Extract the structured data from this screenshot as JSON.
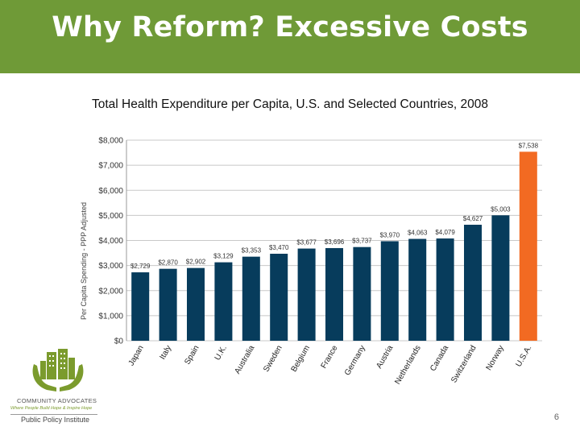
{
  "slide": {
    "title": "Why Reform? Excessive Costs",
    "subtitle": "Total Health Expenditure per Capita, U.S. and Selected Countries, 2008",
    "page_number": "6"
  },
  "logo": {
    "name": "COMMUNITY ADVOCATES",
    "tagline": "Where People Build Hope & Inspire Hope",
    "sub": "Public Policy Institute"
  },
  "colors": {
    "banner": "#6f9a37",
    "bar": "#073c5c",
    "bar_highlight": "#f26a22",
    "grid": "#c8c8c8"
  },
  "chart_data": {
    "type": "bar",
    "title": "Total Health Expenditure per Capita, U.S. and Selected Countries, 2008",
    "xlabel": "",
    "ylabel": "Per Capita Spending - PPP Adjusted",
    "ylim": [
      0,
      8000
    ],
    "yticks": [
      0,
      1000,
      2000,
      3000,
      4000,
      5000,
      6000,
      7000,
      8000
    ],
    "ytick_labels": [
      "$0",
      "$1,000",
      "$2,000",
      "$3,000",
      "$4,000",
      "$5,000",
      "$6,000",
      "$7,000",
      "$8,000"
    ],
    "grid": true,
    "categories": [
      "Japan",
      "Italy",
      "Spain",
      "U.K.",
      "Australia",
      "Sweden",
      "Belgium",
      "France",
      "Germany",
      "Austria",
      "Netherlands",
      "Canada",
      "Switzerland",
      "Norway",
      "U.S.A."
    ],
    "values": [
      2729,
      2870,
      2902,
      3129,
      3353,
      3470,
      3677,
      3696,
      3737,
      3970,
      4063,
      4079,
      4627,
      5003,
      7538
    ],
    "value_labels": [
      "$2,729",
      "$2,870",
      "$2,902",
      "$3,129",
      "$3,353",
      "$3,470",
      "$3,677",
      "$3,696",
      "$3,737",
      "$3,970",
      "$4,063",
      "$4,079",
      "$4,627",
      "$5,003",
      "$7,538"
    ],
    "highlight_index": 14
  }
}
